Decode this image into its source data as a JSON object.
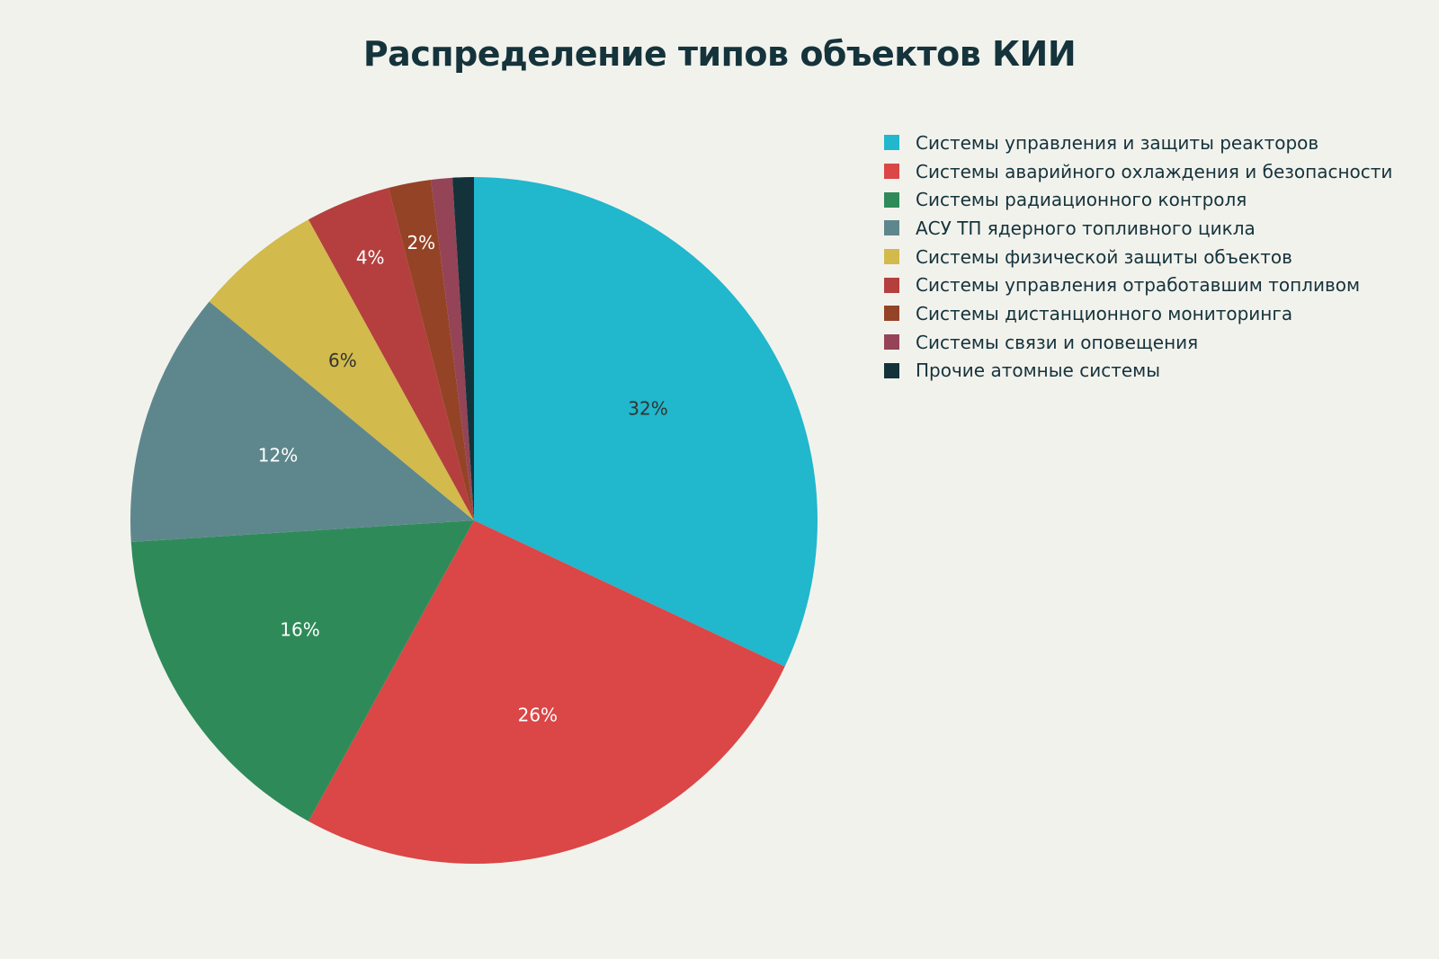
{
  "chart_data": {
    "type": "pie",
    "title": "Распределение типов объектов КИИ",
    "legend_position": "right",
    "slices": [
      {
        "label": "Системы управления и защиты реакторов",
        "value": 32,
        "display": "32%",
        "color": "#21b7cc",
        "text_color": "#333333"
      },
      {
        "label": "Системы аварийного охлаждения и безопасности",
        "value": 26,
        "display": "26%",
        "color": "#db4646",
        "text_color": "#ffffff"
      },
      {
        "label": "Системы радиационного контроля",
        "value": 16,
        "display": "16%",
        "color": "#2e8b59",
        "text_color": "#ffffff"
      },
      {
        "label": "АСУ ТП ядерного топливного цикла",
        "value": 12,
        "display": "12%",
        "color": "#5e878d",
        "text_color": "#ffffff"
      },
      {
        "label": "Системы физической защиты объектов",
        "value": 6,
        "display": "6%",
        "color": "#d2ba4c",
        "text_color": "#333333"
      },
      {
        "label": "Системы управления отработавшим топливом",
        "value": 4,
        "display": "4%",
        "color": "#b43f3e",
        "text_color": "#ffffff"
      },
      {
        "label": "Системы дистанционного мониторинга",
        "value": 2,
        "display": "2%",
        "color": "#954326",
        "text_color": "#ffffff"
      },
      {
        "label": "Системы связи и оповещения",
        "value": 1,
        "display": "",
        "color": "#944456",
        "text_color": "#ffffff"
      },
      {
        "label": "Прочие атомные системы",
        "value": 1,
        "display": "",
        "color": "#14323a",
        "text_color": "#ffffff"
      }
    ]
  }
}
